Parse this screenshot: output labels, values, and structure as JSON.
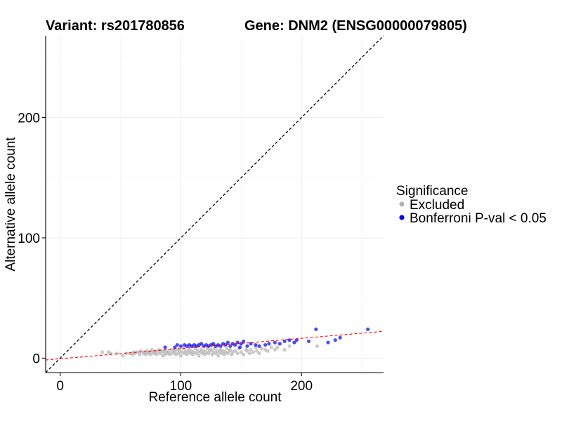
{
  "chart_data": {
    "type": "scatter",
    "title_left": "Variant: rs201780856",
    "title_right": "Gene: DNM2 (ENSG00000079805)",
    "xlabel": "Reference allele count",
    "ylabel": "Alternative allele count",
    "xlim": [
      -12,
      268
    ],
    "ylim": [
      -12,
      268
    ],
    "x_ticks": [
      0,
      100,
      200
    ],
    "y_ticks": [
      0,
      100,
      200
    ],
    "grid": true,
    "legend_position": "right",
    "legend_title": "Significance",
    "reference_line": {
      "slope": 1,
      "intercept": 0,
      "style": "dashed",
      "color": "#000000"
    },
    "fit_line": {
      "slope": 0.085,
      "intercept": -0.5,
      "style": "dashed",
      "color": "#ff0000"
    },
    "series": [
      {
        "name": "Excluded",
        "color": "#b3b3b3",
        "points": [
          [
            35,
            5
          ],
          [
            40,
            5
          ],
          [
            42,
            4
          ],
          [
            47,
            4
          ],
          [
            52,
            2
          ],
          [
            55,
            4
          ],
          [
            58,
            4
          ],
          [
            60,
            3
          ],
          [
            61,
            5
          ],
          [
            62,
            4
          ],
          [
            64,
            5
          ],
          [
            66,
            3
          ],
          [
            67,
            6
          ],
          [
            69,
            4
          ],
          [
            70,
            5
          ],
          [
            71,
            3
          ],
          [
            72,
            6
          ],
          [
            73,
            4
          ],
          [
            74,
            5
          ],
          [
            75,
            3
          ],
          [
            76,
            7
          ],
          [
            77,
            5
          ],
          [
            78,
            4
          ],
          [
            79,
            6
          ],
          [
            80,
            3
          ],
          [
            81,
            5
          ],
          [
            82,
            7
          ],
          [
            83,
            4
          ],
          [
            84,
            6
          ],
          [
            85,
            2
          ],
          [
            86,
            5
          ],
          [
            87,
            3
          ],
          [
            88,
            6
          ],
          [
            89,
            4
          ],
          [
            90,
            5
          ],
          [
            91,
            3
          ],
          [
            92,
            7
          ],
          [
            93,
            4
          ],
          [
            94,
            6
          ],
          [
            95,
            5
          ],
          [
            96,
            3
          ],
          [
            97,
            7
          ],
          [
            98,
            4
          ],
          [
            99,
            6
          ],
          [
            100,
            2
          ],
          [
            101,
            5
          ],
          [
            102,
            8
          ],
          [
            103,
            4
          ],
          [
            104,
            6
          ],
          [
            105,
            3
          ],
          [
            106,
            5
          ],
          [
            107,
            7
          ],
          [
            108,
            4
          ],
          [
            109,
            6
          ],
          [
            110,
            3
          ],
          [
            111,
            5
          ],
          [
            112,
            8
          ],
          [
            113,
            4
          ],
          [
            114,
            6
          ],
          [
            115,
            2
          ],
          [
            116,
            5
          ],
          [
            117,
            7
          ],
          [
            118,
            4
          ],
          [
            119,
            6
          ],
          [
            120,
            3
          ],
          [
            121,
            5
          ],
          [
            122,
            8
          ],
          [
            123,
            4
          ],
          [
            124,
            6
          ],
          [
            125,
            7
          ],
          [
            126,
            3
          ],
          [
            127,
            5
          ],
          [
            128,
            8
          ],
          [
            129,
            4
          ],
          [
            130,
            6
          ],
          [
            131,
            2
          ],
          [
            132,
            5
          ],
          [
            133,
            7
          ],
          [
            134,
            4
          ],
          [
            135,
            6
          ],
          [
            136,
            3
          ],
          [
            137,
            5
          ],
          [
            138,
            8
          ],
          [
            139,
            4
          ],
          [
            140,
            6
          ],
          [
            141,
            7
          ],
          [
            142,
            3
          ],
          [
            143,
            5
          ],
          [
            145,
            6
          ],
          [
            147,
            4
          ],
          [
            148,
            8
          ],
          [
            150,
            5
          ],
          [
            152,
            3
          ],
          [
            154,
            7
          ],
          [
            155,
            6
          ],
          [
            157,
            4
          ],
          [
            158,
            7
          ],
          [
            160,
            5
          ],
          [
            162,
            9
          ],
          [
            163,
            6
          ],
          [
            165,
            4
          ],
          [
            167,
            8
          ],
          [
            170,
            7
          ],
          [
            172,
            6
          ],
          [
            175,
            9
          ],
          [
            178,
            7
          ],
          [
            180,
            9
          ],
          [
            186,
            7
          ],
          [
            190,
            10
          ],
          [
            213,
            10
          ]
        ]
      },
      {
        "name": "Bonferroni P-val < 0.05",
        "color": "#0000ee",
        "points": [
          [
            87,
            9
          ],
          [
            95,
            9
          ],
          [
            97,
            11
          ],
          [
            100,
            10
          ],
          [
            103,
            11
          ],
          [
            105,
            10
          ],
          [
            107,
            11
          ],
          [
            109,
            10
          ],
          [
            111,
            11
          ],
          [
            113,
            10
          ],
          [
            115,
            11
          ],
          [
            117,
            12
          ],
          [
            119,
            10
          ],
          [
            121,
            11
          ],
          [
            123,
            10
          ],
          [
            125,
            11
          ],
          [
            127,
            12
          ],
          [
            129,
            10
          ],
          [
            131,
            11
          ],
          [
            133,
            10
          ],
          [
            135,
            12
          ],
          [
            137,
            11
          ],
          [
            139,
            13
          ],
          [
            141,
            10
          ],
          [
            143,
            12
          ],
          [
            145,
            11
          ],
          [
            147,
            13
          ],
          [
            149,
            9
          ],
          [
            150,
            12
          ],
          [
            152,
            14
          ],
          [
            155,
            10
          ],
          [
            158,
            12
          ],
          [
            162,
            11
          ],
          [
            165,
            10
          ],
          [
            170,
            11
          ],
          [
            173,
            12
          ],
          [
            178,
            13
          ],
          [
            182,
            12
          ],
          [
            186,
            14
          ],
          [
            190,
            15
          ],
          [
            194,
            13
          ],
          [
            196,
            15
          ],
          [
            206,
            14
          ],
          [
            212,
            24
          ],
          [
            222,
            13
          ],
          [
            228,
            15
          ],
          [
            232,
            17
          ],
          [
            255,
            24
          ]
        ]
      }
    ]
  }
}
